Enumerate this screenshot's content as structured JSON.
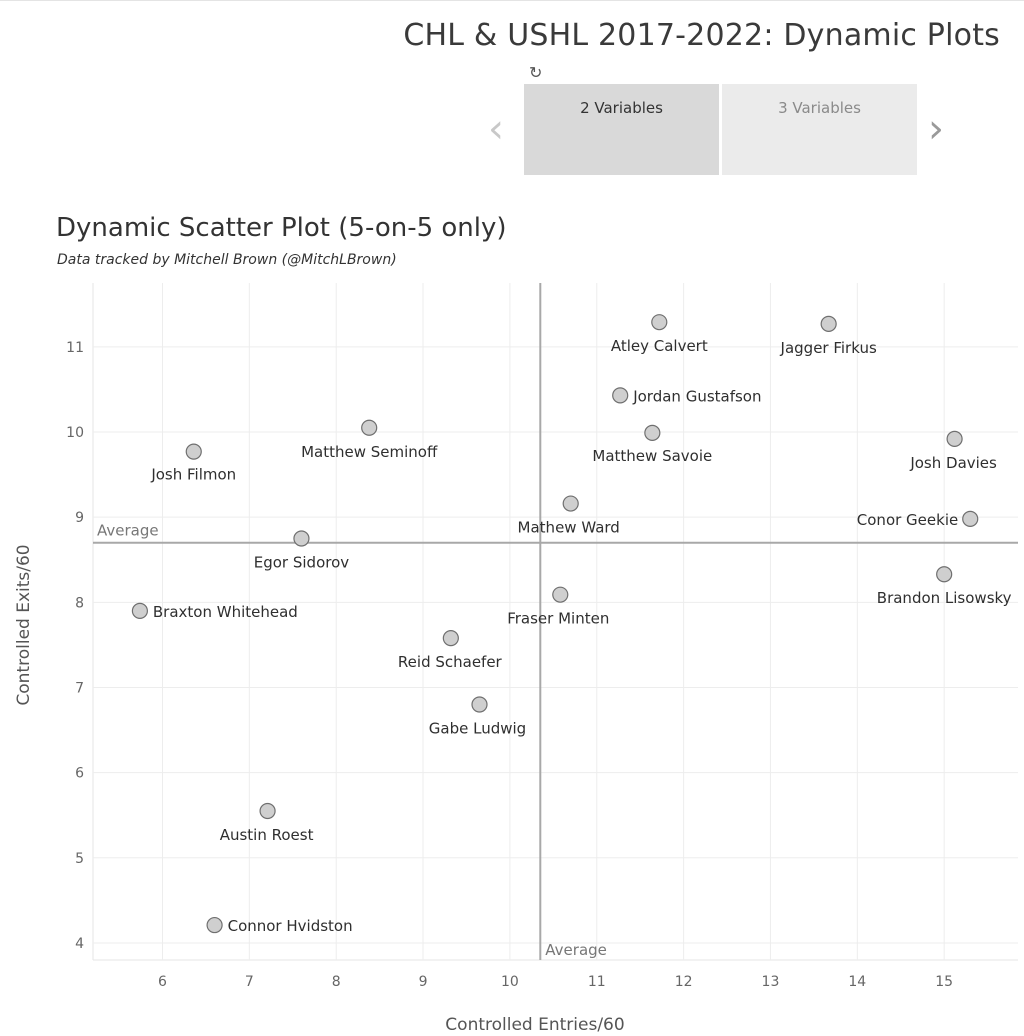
{
  "dashboard": {
    "title": "CHL & USHL 2017-2022: Dynamic Plots",
    "revert_icon": "revert-icon",
    "tabs": [
      {
        "label": "2 Variables",
        "active": true
      },
      {
        "label": "3 Variables",
        "active": false
      }
    ],
    "prev_icon": "chevron-left-icon",
    "next_icon": "chevron-right-icon"
  },
  "chart": {
    "title": "Dynamic Scatter Plot (5-on-5 only)",
    "subtitle": "Data tracked by Mitchell Brown (@MitchLBrown)"
  },
  "chart_data": {
    "type": "scatter",
    "xlabel": "Controlled Entries/60",
    "ylabel": "Controlled Exits/60",
    "xlim": [
      5.2,
      15.85
    ],
    "ylim": [
      3.8,
      11.75
    ],
    "xticks": [
      6,
      7,
      8,
      9,
      10,
      11,
      12,
      13,
      14,
      15
    ],
    "yticks": [
      4,
      5,
      6,
      7,
      8,
      9,
      10,
      11
    ],
    "grid": true,
    "reference_lines": [
      {
        "axis": "x",
        "value": 10.35,
        "label": "Average"
      },
      {
        "axis": "y",
        "value": 8.7,
        "label": "Average"
      }
    ],
    "points": [
      {
        "name": "Atley Calvert",
        "x": 11.72,
        "y": 11.29
      },
      {
        "name": "Jagger Firkus",
        "x": 13.67,
        "y": 11.27
      },
      {
        "name": "Jordan Gustafson",
        "x": 11.27,
        "y": 10.43
      },
      {
        "name": "Matthew Seminoff",
        "x": 8.38,
        "y": 10.05
      },
      {
        "name": "Matthew Savoie",
        "x": 11.64,
        "y": 9.99
      },
      {
        "name": "Josh Davies",
        "x": 15.12,
        "y": 9.92
      },
      {
        "name": "Josh Filmon",
        "x": 6.36,
        "y": 9.77
      },
      {
        "name": "Mathew Ward",
        "x": 10.7,
        "y": 9.16
      },
      {
        "name": "Conor Geekie",
        "x": 15.3,
        "y": 8.98
      },
      {
        "name": "Egor Sidorov",
        "x": 7.6,
        "y": 8.75
      },
      {
        "name": "Brandon Lisowsky",
        "x": 15.0,
        "y": 8.33
      },
      {
        "name": "Fraser Minten",
        "x": 10.58,
        "y": 8.09
      },
      {
        "name": "Braxton Whitehead",
        "x": 5.74,
        "y": 7.9
      },
      {
        "name": "Reid Schaefer",
        "x": 9.32,
        "y": 7.58
      },
      {
        "name": "Gabe Ludwig",
        "x": 9.65,
        "y": 6.8
      },
      {
        "name": "Austin Roest",
        "x": 7.21,
        "y": 5.55
      },
      {
        "name": "Connor Hvidston",
        "x": 6.6,
        "y": 4.21
      }
    ]
  }
}
